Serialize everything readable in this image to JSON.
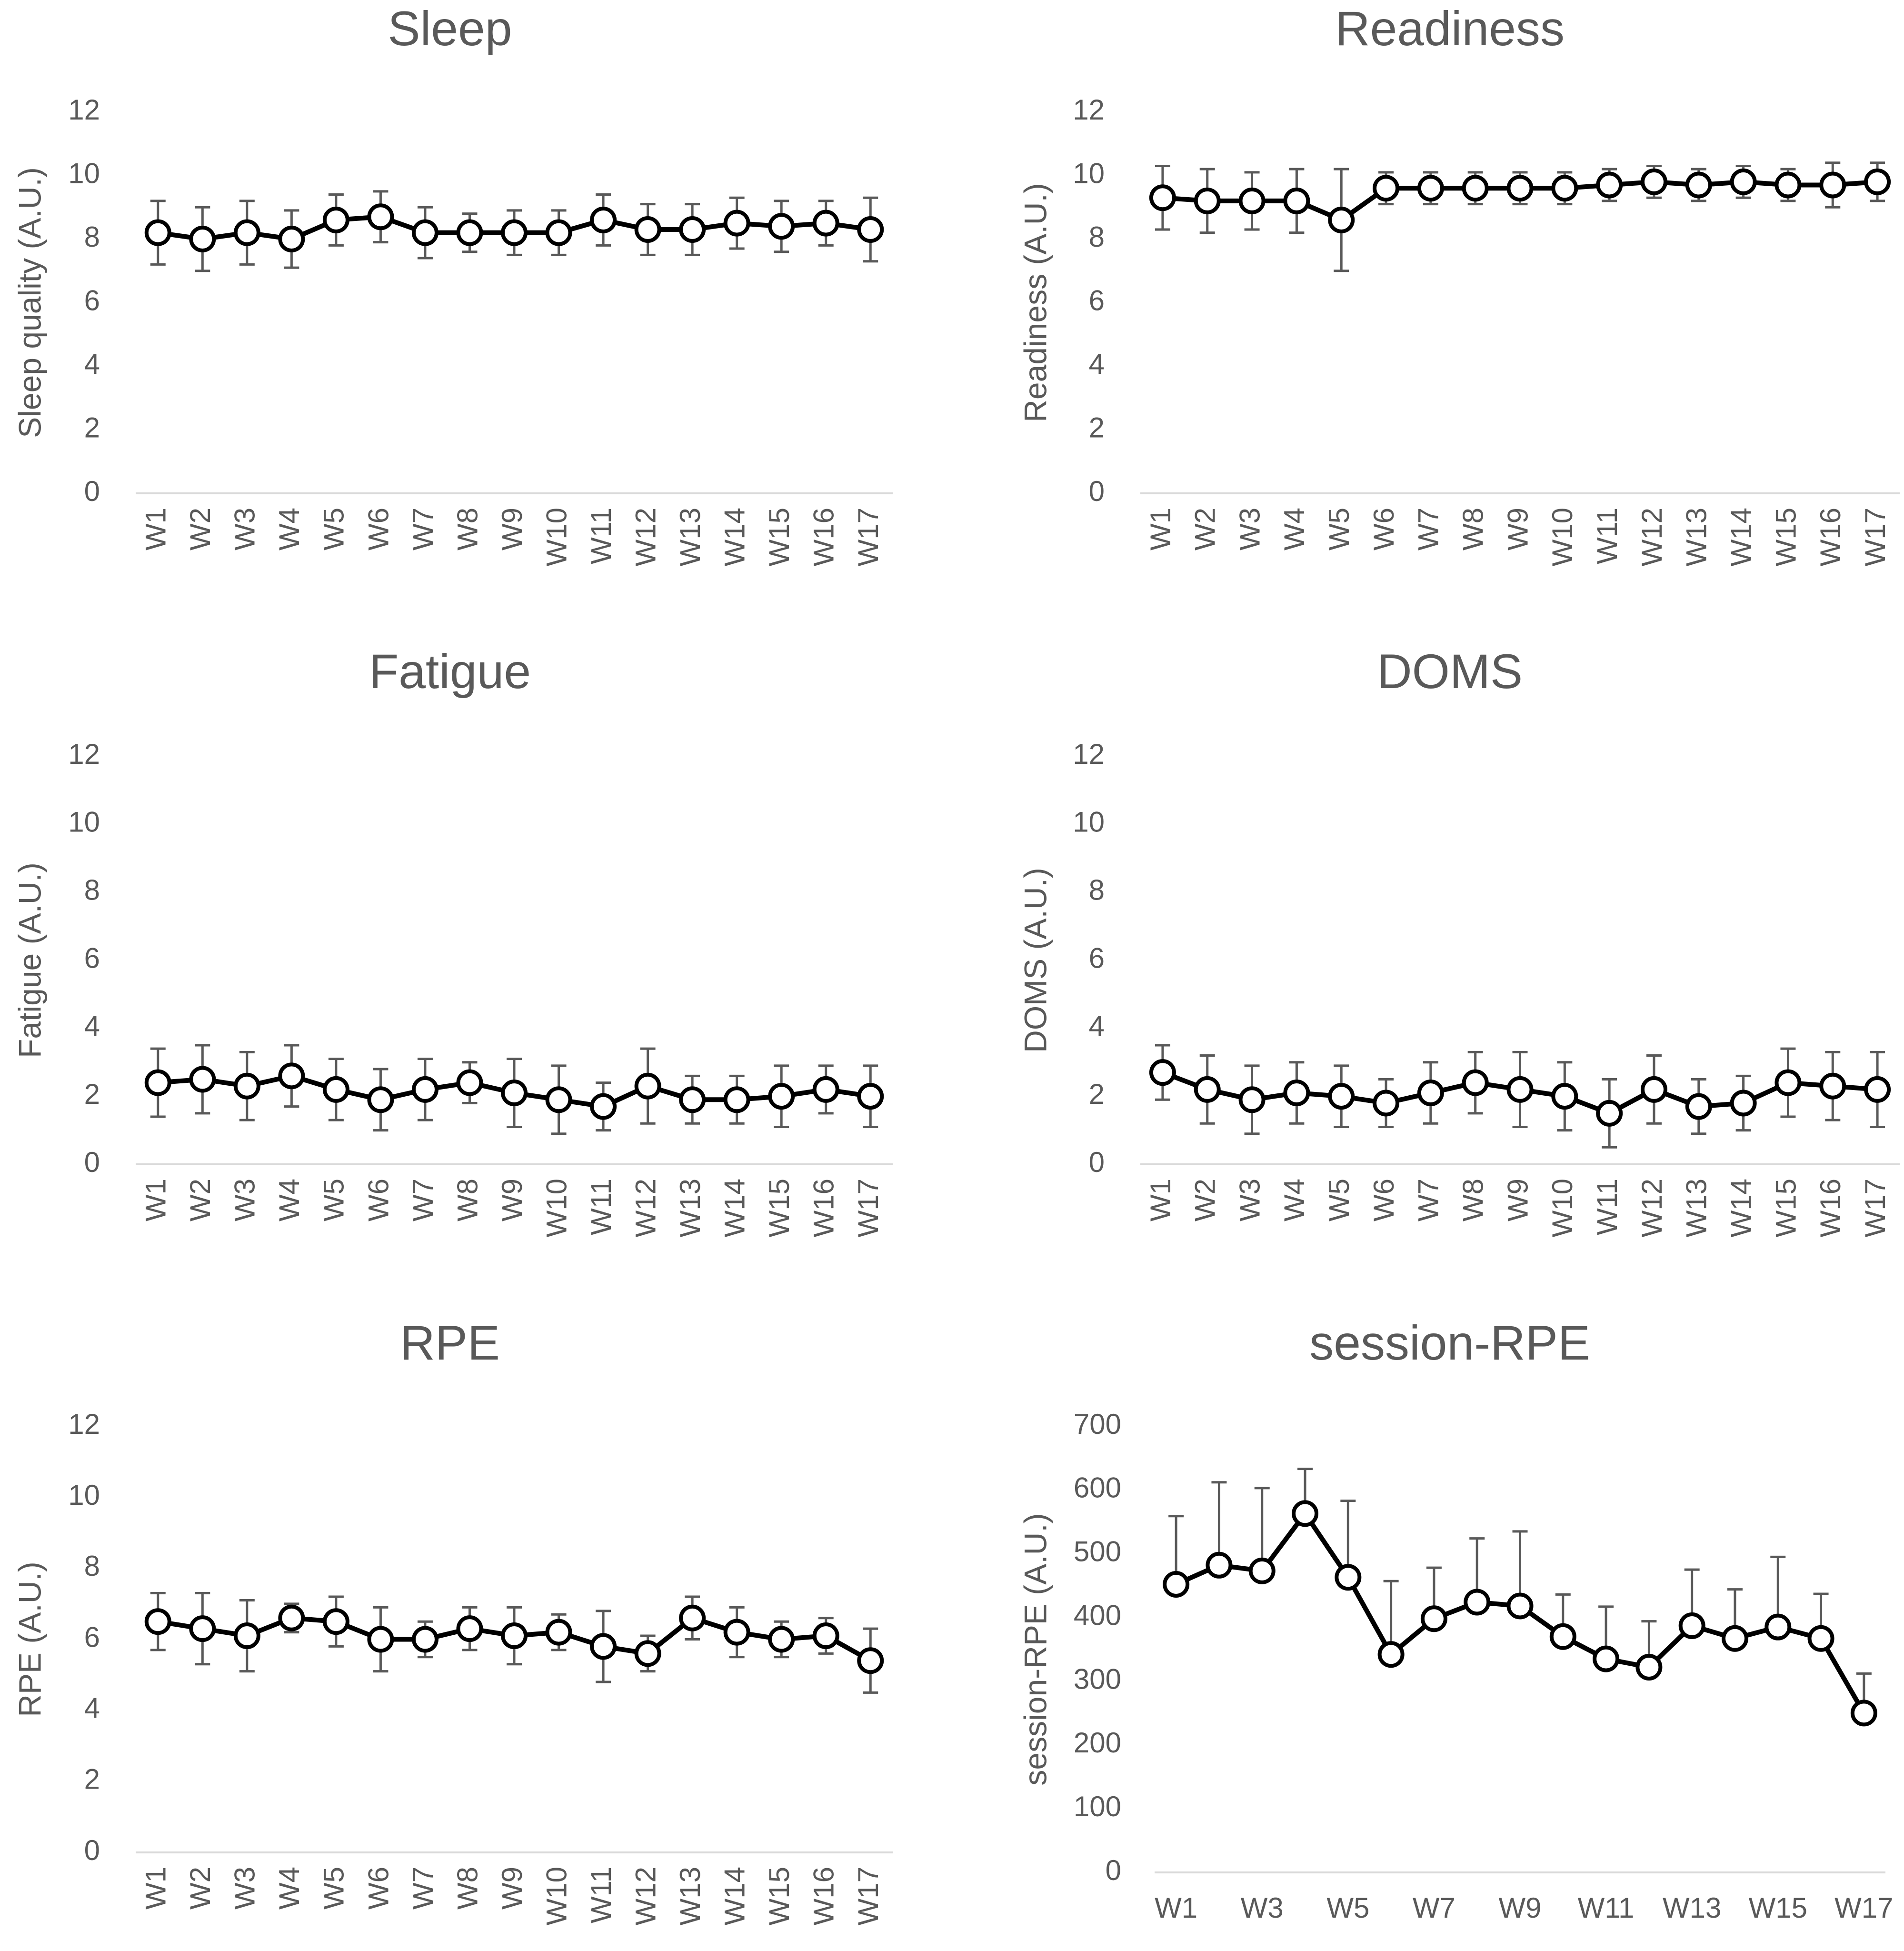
{
  "chart_data": [
    {
      "type": "line",
      "title": "Sleep",
      "ylabel": "Sleep quality (A.U.)",
      "xlabel": "",
      "ylim": [
        0,
        12
      ],
      "yticks": [
        0,
        2,
        4,
        6,
        8,
        10,
        12
      ],
      "categories": [
        "W1",
        "W2",
        "W3",
        "W4",
        "W5",
        "W6",
        "W7",
        "W8",
        "W9",
        "W10",
        "W11",
        "W12",
        "W13",
        "W14",
        "W15",
        "W16",
        "W17"
      ],
      "values": [
        8.2,
        8.0,
        8.2,
        8.0,
        8.6,
        8.7,
        8.2,
        8.2,
        8.2,
        8.2,
        8.6,
        8.3,
        8.3,
        8.5,
        8.4,
        8.5,
        8.3
      ],
      "errors": [
        1.0,
        1.0,
        1.0,
        0.9,
        0.8,
        0.8,
        0.8,
        0.6,
        0.7,
        0.7,
        0.8,
        0.8,
        0.8,
        0.8,
        0.8,
        0.7,
        1.0
      ],
      "error_style": "both"
    },
    {
      "type": "line",
      "title": "Readiness",
      "ylabel": "Readiness (A.U.)",
      "xlabel": "",
      "ylim": [
        0,
        12
      ],
      "yticks": [
        0,
        2,
        4,
        6,
        8,
        10,
        12
      ],
      "categories": [
        "W1",
        "W2",
        "W3",
        "W4",
        "W5",
        "W6",
        "W7",
        "W8",
        "W9",
        "W10",
        "W11",
        "W12",
        "W13",
        "W14",
        "W15",
        "W16",
        "W17"
      ],
      "values": [
        9.3,
        9.2,
        9.2,
        9.2,
        8.6,
        9.6,
        9.6,
        9.6,
        9.6,
        9.6,
        9.7,
        9.8,
        9.7,
        9.8,
        9.7,
        9.7,
        9.8
      ],
      "errors": [
        1.0,
        1.0,
        0.9,
        1.0,
        1.6,
        0.5,
        0.5,
        0.5,
        0.5,
        0.5,
        0.5,
        0.5,
        0.5,
        0.5,
        0.5,
        0.7,
        0.6
      ],
      "error_style": "both"
    },
    {
      "type": "line",
      "title": "Fatigue",
      "ylabel": "Fatigue (A.U.)",
      "xlabel": "",
      "ylim": [
        0,
        12
      ],
      "yticks": [
        0,
        2,
        4,
        6,
        8,
        10,
        12
      ],
      "categories": [
        "W1",
        "W2",
        "W3",
        "W4",
        "W5",
        "W6",
        "W7",
        "W8",
        "W9",
        "W10",
        "W11",
        "W12",
        "W13",
        "W14",
        "W15",
        "W16",
        "W17"
      ],
      "values": [
        2.4,
        2.5,
        2.3,
        2.6,
        2.2,
        1.9,
        2.2,
        2.4,
        2.1,
        1.9,
        1.7,
        2.3,
        1.9,
        1.9,
        2.0,
        2.2,
        2.0
      ],
      "errors": [
        1.0,
        1.0,
        1.0,
        0.9,
        0.9,
        0.9,
        0.9,
        0.6,
        1.0,
        1.0,
        0.7,
        1.1,
        0.7,
        0.7,
        0.9,
        0.7,
        0.9
      ],
      "error_style": "both"
    },
    {
      "type": "line",
      "title": "DOMS",
      "ylabel": "DOMS (A.U.)",
      "xlabel": "",
      "ylim": [
        0,
        12
      ],
      "yticks": [
        0,
        2,
        4,
        6,
        8,
        10,
        12
      ],
      "categories": [
        "W1",
        "W2",
        "W3",
        "W4",
        "W5",
        "W6",
        "W7",
        "W8",
        "W9",
        "W10",
        "W11",
        "W12",
        "W13",
        "W14",
        "W15",
        "W16",
        "W17"
      ],
      "values": [
        2.7,
        2.2,
        1.9,
        2.1,
        2.0,
        1.8,
        2.1,
        2.4,
        2.2,
        2.0,
        1.5,
        2.2,
        1.7,
        1.8,
        2.4,
        2.3,
        2.2
      ],
      "errors": [
        0.8,
        1.0,
        1.0,
        0.9,
        0.9,
        0.7,
        0.9,
        0.9,
        1.1,
        1.0,
        1.0,
        1.0,
        0.8,
        0.8,
        1.0,
        1.0,
        1.1
      ],
      "error_style": "both"
    },
    {
      "type": "line",
      "title": "RPE",
      "ylabel": "RPE (A.U.)",
      "xlabel": "",
      "ylim": [
        0,
        12
      ],
      "yticks": [
        0,
        2,
        4,
        6,
        8,
        10,
        12
      ],
      "categories": [
        "W1",
        "W2",
        "W3",
        "W4",
        "W5",
        "W6",
        "W7",
        "W8",
        "W9",
        "W10",
        "W11",
        "W12",
        "W13",
        "W14",
        "W15",
        "W16",
        "W17"
      ],
      "values": [
        6.5,
        6.3,
        6.1,
        6.6,
        6.5,
        6.0,
        6.0,
        6.3,
        6.1,
        6.2,
        5.8,
        5.6,
        6.6,
        6.2,
        6.0,
        6.1,
        5.4
      ],
      "errors": [
        0.8,
        1.0,
        1.0,
        0.4,
        0.7,
        0.9,
        0.5,
        0.6,
        0.8,
        0.5,
        1.0,
        0.5,
        0.6,
        0.7,
        0.5,
        0.5,
        0.9
      ],
      "error_style": "both"
    },
    {
      "type": "line",
      "title": "session-RPE",
      "ylabel": "session-RPE (A.U.)",
      "xlabel": "",
      "ylim": [
        0,
        700
      ],
      "yticks": [
        0,
        100,
        200,
        300,
        400,
        500,
        600,
        700
      ],
      "categories": [
        "W1",
        "W2",
        "W3",
        "W4",
        "W5",
        "W6",
        "W7",
        "W8",
        "W9",
        "W10",
        "W11",
        "W12",
        "W13",
        "W14",
        "W15",
        "W16",
        "W17"
      ],
      "tick_labels_shown": [
        "W1",
        "W3",
        "W5",
        "W7",
        "W9",
        "W11",
        "W13",
        "W15",
        "W17"
      ],
      "values": [
        452,
        482,
        473,
        563,
        463,
        342,
        398,
        424,
        418,
        370,
        335,
        322,
        387,
        367,
        385,
        367,
        250
      ],
      "errors": [
        107,
        130,
        130,
        70,
        120,
        115,
        80,
        100,
        117,
        66,
        82,
        72,
        88,
        77,
        110,
        70,
        62
      ],
      "error_style": "upper"
    }
  ]
}
